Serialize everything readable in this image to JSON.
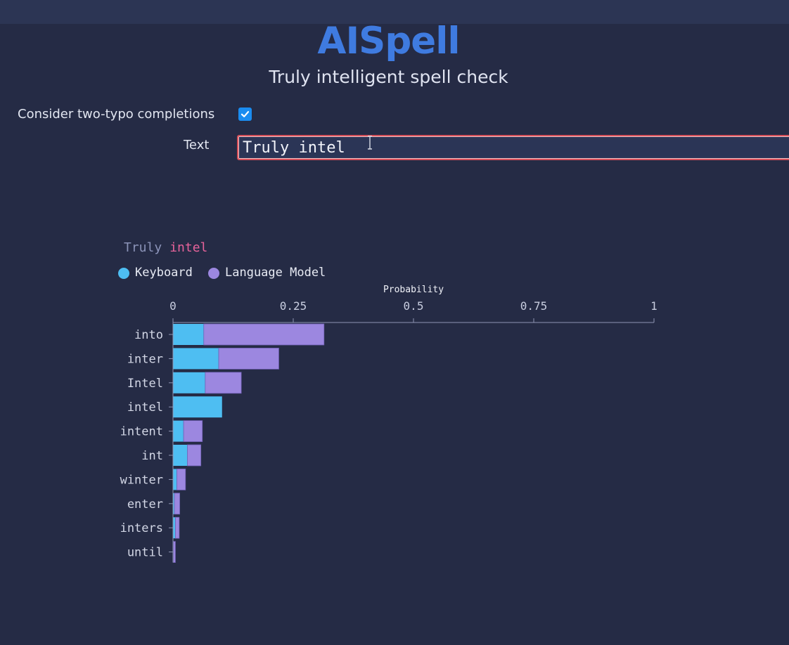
{
  "app": {
    "title": "AISpell",
    "subtitle": "Truly intelligent spell check"
  },
  "options": {
    "two_typo_label": "Consider two-typo completions",
    "two_typo_checked": true
  },
  "text_input": {
    "label": "Text",
    "value": "Truly intel"
  },
  "chart_header": {
    "previous_word": "Truly",
    "current_word": "intel"
  },
  "colors": {
    "keyboard": "#4ebef2",
    "language_model": "#9c87e0",
    "accent": "#3f7be0",
    "current_word": "#e7639b"
  },
  "chart_data": {
    "type": "bar",
    "orientation": "horizontal",
    "stacked": true,
    "xlabel": "Probability",
    "xlim": [
      0,
      1
    ],
    "xticks": [
      "0",
      "0.25",
      "0.5",
      "0.75",
      "1"
    ],
    "legend_position": "top-left",
    "categories": [
      "into",
      "inter",
      "Intel",
      "intel",
      "intent",
      "int",
      "winter",
      "enter",
      "inters",
      "until"
    ],
    "series": [
      {
        "name": "Keyboard",
        "values": [
          0.064,
          0.095,
          0.067,
          0.102,
          0.022,
          0.03,
          0.008,
          0.003,
          0.005,
          0.001
        ]
      },
      {
        "name": "Language Model",
        "values": [
          0.25,
          0.125,
          0.075,
          0.0,
          0.039,
          0.028,
          0.018,
          0.011,
          0.008,
          0.004
        ]
      }
    ]
  }
}
